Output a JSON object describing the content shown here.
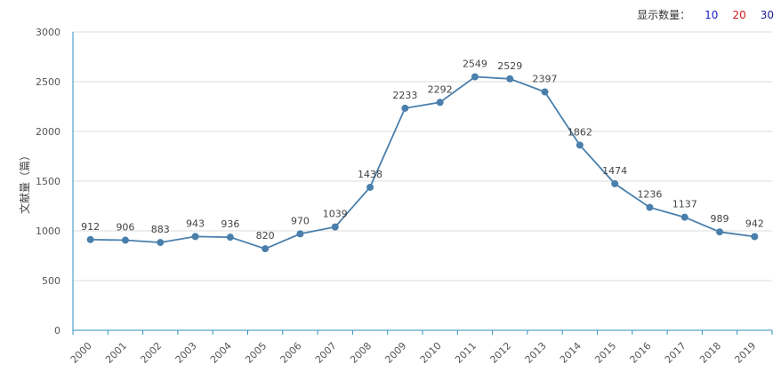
{
  "toolbar": {
    "label": "显示数量：",
    "options": [
      {
        "label": "10",
        "color": "#1a1acc"
      },
      {
        "label": "20",
        "color": "#cc1a1a"
      },
      {
        "label": "30",
        "color": "#1a1a99"
      }
    ]
  },
  "chart_data": {
    "type": "line",
    "x": [
      "2000",
      "2001",
      "2002",
      "2003",
      "2004",
      "2005",
      "2006",
      "2007",
      "2008",
      "2009",
      "2010",
      "2011",
      "2012",
      "2013",
      "2014",
      "2015",
      "2016",
      "2017",
      "2018",
      "2019"
    ],
    "series": [
      {
        "values": [
          912,
          906,
          883,
          943,
          936,
          820,
          970,
          1039,
          1438,
          2233,
          2292,
          2549,
          2529,
          2397,
          1862,
          1474,
          1236,
          1137,
          989,
          942
        ]
      }
    ],
    "ylabel": "文献量（篇）",
    "ylim": [
      0,
      3000
    ],
    "yticks": [
      0,
      500,
      1000,
      1500,
      2000,
      2500,
      3000
    ],
    "grid": true,
    "line_color": "#4a7fac",
    "axis_color": "#2f8fbf"
  }
}
